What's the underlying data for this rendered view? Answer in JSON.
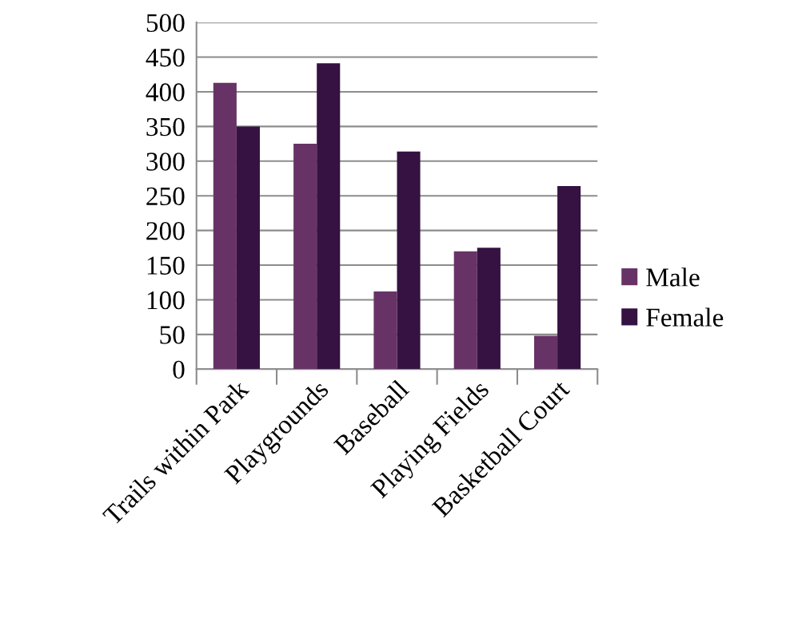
{
  "chart_data": {
    "type": "bar",
    "categories": [
      "Trails within Park",
      "Playgrounds",
      "Baseball",
      "Playing Fields",
      "Basketball Court"
    ],
    "series": [
      {
        "name": "Male",
        "color": "#673366",
        "values": [
          413,
          325,
          112,
          170,
          48
        ]
      },
      {
        "name": "Female",
        "color": "#351242",
        "values": [
          350,
          441,
          314,
          175,
          264
        ]
      }
    ],
    "ylim": [
      0,
      500
    ],
    "yticks": [
      0,
      50,
      100,
      150,
      200,
      250,
      300,
      350,
      400,
      450,
      500
    ],
    "grid": "y",
    "legend": "right"
  }
}
